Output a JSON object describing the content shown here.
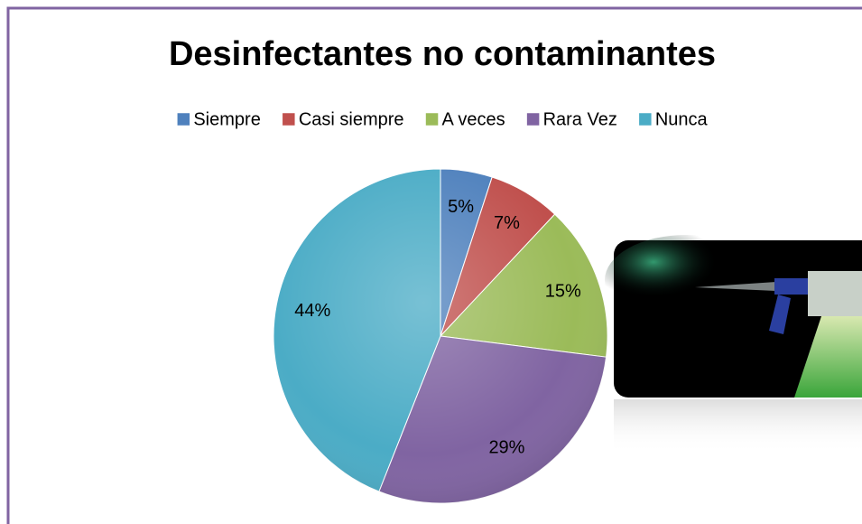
{
  "chart_data": {
    "type": "pie",
    "title": "Desinfectantes no contaminantes",
    "categories": [
      "Siempre",
      "Casi siempre",
      "A veces",
      "Rara Vez",
      "Nunca"
    ],
    "values": [
      5,
      7,
      15,
      29,
      44
    ],
    "value_labels": [
      "5%",
      "7%",
      "15%",
      "29%",
      "44%"
    ],
    "colors": [
      "#4f81bd",
      "#c0504d",
      "#9bbb59",
      "#8064a2",
      "#4bacc6"
    ],
    "legend": "top"
  }
}
